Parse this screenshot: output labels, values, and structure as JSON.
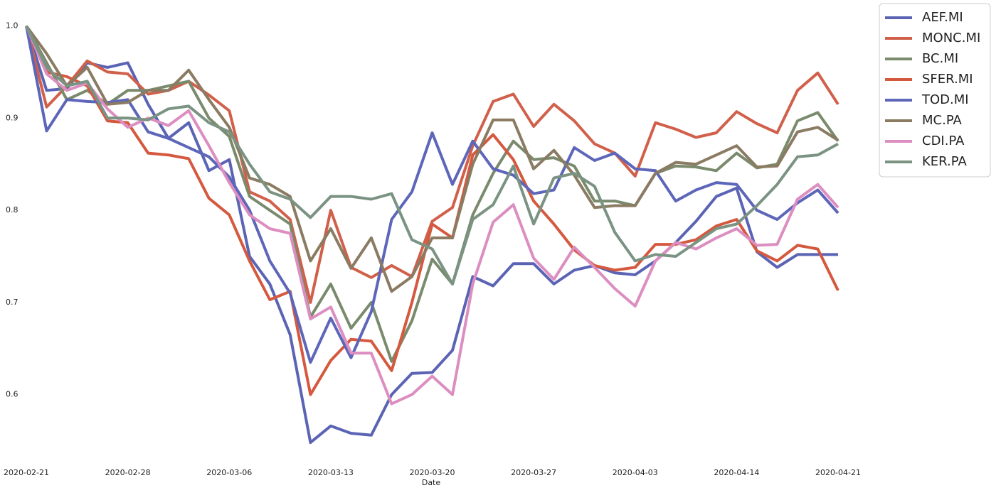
{
  "chart_data": {
    "type": "line",
    "xlabel": "Date",
    "categories": [
      "2020-02-21",
      null,
      null,
      null,
      null,
      "2020-02-28",
      null,
      null,
      null,
      null,
      "2020-03-06",
      null,
      null,
      null,
      null,
      "2020-03-13",
      null,
      null,
      null,
      null,
      "2020-03-20",
      null,
      null,
      null,
      null,
      "2020-03-27",
      null,
      null,
      null,
      null,
      "2020-04-03",
      null,
      null,
      null,
      null,
      "2020-04-14",
      null,
      null,
      null,
      null,
      "2020-04-21"
    ],
    "ylim": [
      0.535,
      1.005
    ],
    "yticks": [
      0.6,
      0.7,
      0.8,
      0.9,
      {
        "value": 1,
        "label": "1.0"
      }
    ],
    "grid": false,
    "legend": "upper right outside",
    "series": [
      {
        "name": "AEF.MI",
        "color": "#5b64b4",
        "values": [
          1.0,
          0.93,
          0.932,
          0.96,
          0.955,
          0.96,
          0.915,
          0.878,
          0.895,
          0.843,
          0.855,
          0.75,
          0.72,
          0.665,
          0.548,
          0.566,
          0.558,
          0.556,
          0.6,
          0.623,
          0.624,
          0.648,
          0.728,
          0.718,
          0.742,
          0.742,
          0.72,
          0.735,
          0.74,
          0.732,
          0.73,
          0.745,
          0.765,
          0.788,
          0.815,
          0.824,
          0.755,
          0.738,
          0.752,
          0.752,
          0.752
        ]
      },
      {
        "name": "MONC.MI",
        "color": "#d1604b",
        "values": [
          1.0,
          0.912,
          0.935,
          0.962,
          0.95,
          0.948,
          0.926,
          0.93,
          0.94,
          0.925,
          0.908,
          0.82,
          0.81,
          0.79,
          0.7,
          0.8,
          0.738,
          0.727,
          0.74,
          0.728,
          0.788,
          0.803,
          0.87,
          0.918,
          0.926,
          0.891,
          0.915,
          0.897,
          0.872,
          0.862,
          0.837,
          0.895,
          0.888,
          0.879,
          0.884,
          0.907,
          0.894,
          0.884,
          0.93,
          0.949,
          0.915
        ]
      },
      {
        "name": "BC.MI",
        "color": "#7a8a6c",
        "values": [
          1.0,
          0.96,
          0.92,
          0.93,
          0.915,
          0.93,
          0.93,
          0.935,
          0.94,
          0.9,
          0.88,
          0.815,
          0.8,
          0.785,
          0.684,
          0.72,
          0.672,
          0.7,
          0.636,
          0.68,
          0.747,
          0.72,
          0.795,
          0.84,
          0.875,
          0.855,
          0.857,
          0.848,
          0.81,
          0.81,
          0.805,
          0.84,
          0.848,
          0.847,
          0.843,
          0.862,
          0.846,
          0.85,
          0.897,
          0.906,
          0.875
        ]
      },
      {
        "name": "SFER.MI",
        "color": "#d4593f",
        "values": [
          1.0,
          0.95,
          0.945,
          0.935,
          0.897,
          0.895,
          0.862,
          0.86,
          0.856,
          0.813,
          0.795,
          0.745,
          0.703,
          0.712,
          0.6,
          0.637,
          0.66,
          0.658,
          0.626,
          0.7,
          0.785,
          0.77,
          0.86,
          0.882,
          0.855,
          0.81,
          0.785,
          0.757,
          0.74,
          0.735,
          0.738,
          0.763,
          0.763,
          0.768,
          0.783,
          0.79,
          0.756,
          0.745,
          0.762,
          0.758,
          0.713
        ]
      },
      {
        "name": "TOD.MI",
        "color": "#5d66b8",
        "values": [
          1.0,
          0.886,
          0.92,
          0.918,
          0.917,
          0.92,
          0.885,
          0.878,
          0.868,
          0.858,
          0.836,
          0.8,
          0.745,
          0.71,
          0.635,
          0.683,
          0.64,
          0.69,
          0.79,
          0.82,
          0.884,
          0.828,
          0.875,
          0.845,
          0.838,
          0.818,
          0.822,
          0.868,
          0.854,
          0.862,
          0.845,
          0.843,
          0.81,
          0.822,
          0.83,
          0.828,
          0.8,
          0.79,
          0.808,
          0.822,
          0.797
        ]
      },
      {
        "name": "MC.PA",
        "color": "#8a7b62",
        "values": [
          1.0,
          0.97,
          0.935,
          0.955,
          0.915,
          0.917,
          0.93,
          0.93,
          0.952,
          0.92,
          0.89,
          0.835,
          0.828,
          0.815,
          0.745,
          0.78,
          0.737,
          0.77,
          0.712,
          0.728,
          0.77,
          0.77,
          0.85,
          0.898,
          0.898,
          0.845,
          0.865,
          0.838,
          0.803,
          0.805,
          0.805,
          0.84,
          0.852,
          0.85,
          0.86,
          0.87,
          0.847,
          0.848,
          0.885,
          0.89,
          0.876
        ]
      },
      {
        "name": "CDI.PA",
        "color": "#dc8ec0",
        "values": [
          1.0,
          0.948,
          0.93,
          0.938,
          0.91,
          0.89,
          0.9,
          0.892,
          0.908,
          0.87,
          0.83,
          0.795,
          0.78,
          0.775,
          0.682,
          0.695,
          0.645,
          0.645,
          0.59,
          0.6,
          0.62,
          0.6,
          0.72,
          0.787,
          0.806,
          0.748,
          0.725,
          0.76,
          0.738,
          0.715,
          0.696,
          0.745,
          0.765,
          0.758,
          0.77,
          0.78,
          0.762,
          0.763,
          0.812,
          0.828,
          0.803
        ]
      },
      {
        "name": "KER.PA",
        "color": "#7b9382",
        "values": [
          1.0,
          0.955,
          0.935,
          0.94,
          0.9,
          0.9,
          0.898,
          0.91,
          0.913,
          0.895,
          0.885,
          0.85,
          0.82,
          0.812,
          0.792,
          0.815,
          0.815,
          0.812,
          0.818,
          0.768,
          0.758,
          0.72,
          0.79,
          0.806,
          0.848,
          0.785,
          0.835,
          0.84,
          0.826,
          0.776,
          0.745,
          0.752,
          0.75,
          0.765,
          0.78,
          0.785,
          0.805,
          0.828,
          0.858,
          0.86,
          0.872
        ]
      }
    ]
  }
}
